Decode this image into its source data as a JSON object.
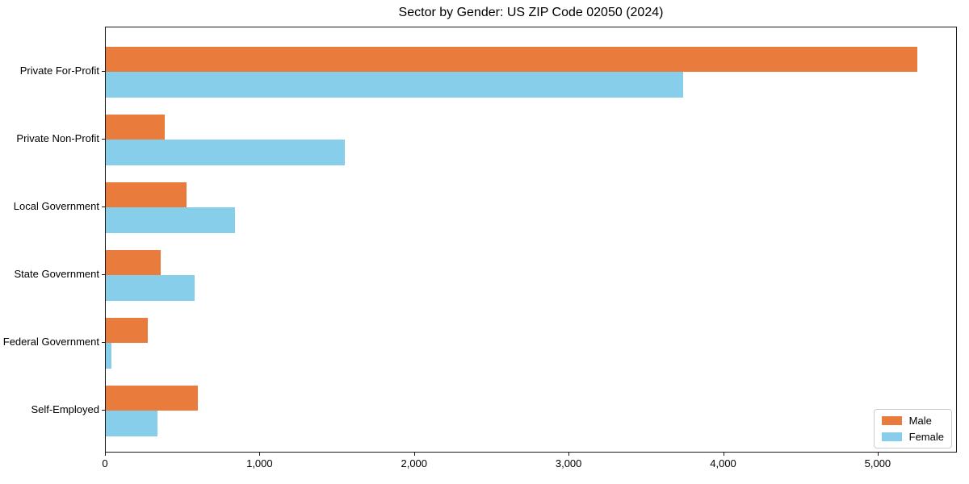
{
  "chart_data": {
    "type": "bar",
    "orientation": "horizontal",
    "title": "Sector by Gender: US ZIP Code 02050 (2024)",
    "categories": [
      "Private For-Profit",
      "Private Non-Profit",
      "Local Government",
      "State Government",
      "Federal Government",
      "Self-Employed"
    ],
    "series": [
      {
        "name": "Male",
        "color": "#E97B3D",
        "values": [
          5250,
          380,
          520,
          355,
          270,
          595
        ]
      },
      {
        "name": "Female",
        "color": "#87CEEB",
        "values": [
          3735,
          1545,
          835,
          575,
          35,
          335
        ]
      }
    ],
    "xlabel": "",
    "ylabel": "",
    "xlim": [
      0,
      5512.5
    ],
    "x_ticks": [
      0,
      1000,
      2000,
      3000,
      4000,
      5000
    ],
    "x_tick_labels": [
      "0",
      "1,000",
      "2,000",
      "3,000",
      "4,000",
      "5,000"
    ],
    "grid": false,
    "legend": {
      "position": "lower right",
      "entries": [
        "Male",
        "Female"
      ]
    },
    "frame_color": "#1a1a1a",
    "background_color": "#ffffff"
  }
}
